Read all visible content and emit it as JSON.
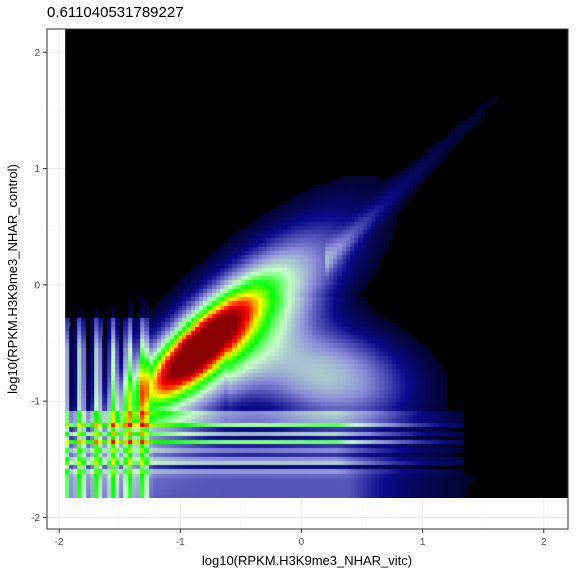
{
  "chart_data": {
    "type": "heatmap",
    "title": "0.611040531789227",
    "xlabel": "log10(RPKM.H3K9me3_NHAR_vitc)",
    "ylabel": "log10(RPKM.H3K9me3_NHAR_control)",
    "xlim": [
      -2.1,
      2.2
    ],
    "ylim": [
      -2.1,
      2.2
    ],
    "x_data_range": [
      -1.95,
      2.2
    ],
    "y_data_range": [
      -1.83,
      2.2
    ],
    "x_ticks": [
      -2,
      -1,
      0,
      1,
      2
    ],
    "y_ticks": [
      -2,
      -1,
      0,
      1,
      2
    ],
    "x_tick_labels": [
      "-2",
      "-1",
      "0",
      "1",
      "2"
    ],
    "y_tick_labels": [
      "-2",
      "-1",
      "0",
      "1",
      "2"
    ],
    "grid": true,
    "background": "#000000",
    "color_scale": [
      "#000000",
      "#0a0a8c",
      "#8a8ad8",
      "#c8ffc8",
      "#00ff00",
      "#ffff00",
      "#ff0000",
      "#8b0000"
    ],
    "density_peak": {
      "x": -0.85,
      "y": -0.55
    },
    "density_ridge": {
      "slope": 1.0,
      "x_start": -1.1,
      "x_end": 0.35
    },
    "stripe_bands_y": [
      -1.12,
      -1.2,
      -1.28,
      -1.36,
      -1.44,
      -1.52,
      -1.6
    ],
    "stripe_columns_x": [
      -1.95,
      -1.82,
      -1.68,
      -1.55,
      -1.42,
      -1.3
    ]
  }
}
